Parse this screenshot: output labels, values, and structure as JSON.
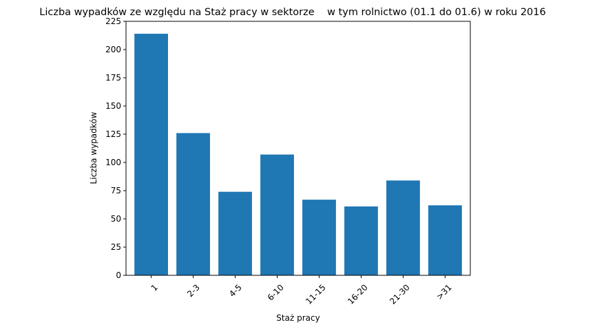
{
  "chart_data": {
    "type": "bar",
    "title": "Liczba wypadków ze względu na Staż pracy w sektorze    w tym rolnictwo (01.1 do 01.6) w roku 2016",
    "xlabel": "Staż pracy",
    "ylabel": "Liczba wypadków",
    "categories": [
      "1",
      "2-3",
      "4-5",
      "6-10",
      "11-15",
      "16-20",
      "21-30",
      ">31"
    ],
    "values": [
      214,
      126,
      74,
      107,
      67,
      61,
      84,
      62
    ],
    "ylim": [
      0,
      225
    ],
    "yticks": [
      0,
      25,
      50,
      75,
      100,
      125,
      150,
      175,
      200,
      225
    ],
    "bar_color": "#1f77b4",
    "x_tick_rotation": "45deg",
    "grid": false,
    "legend": "none"
  }
}
